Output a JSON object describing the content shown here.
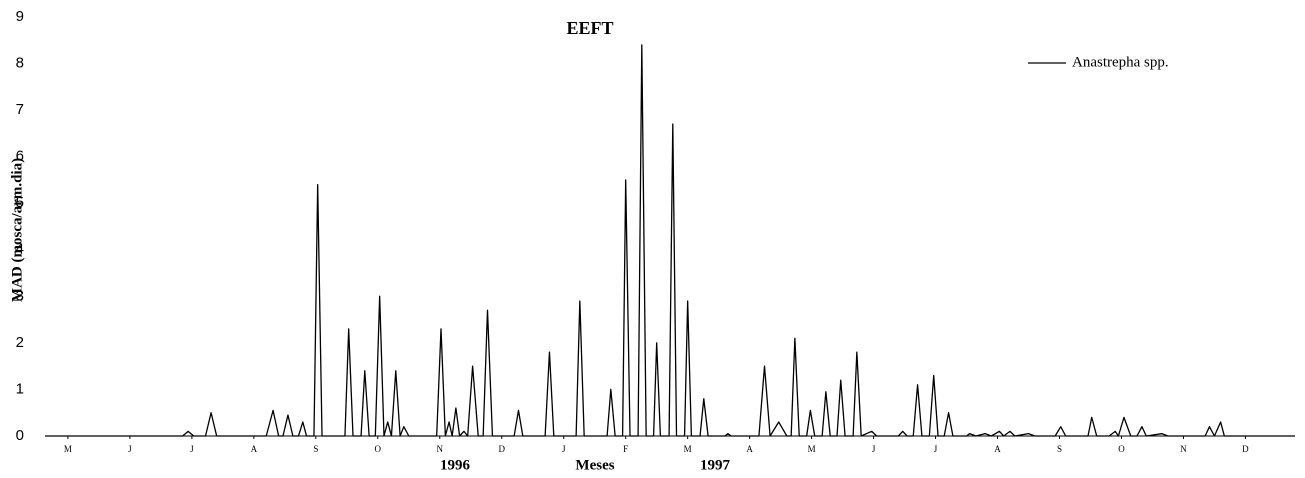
{
  "chart_data": {
    "type": "line",
    "title": "EEFT",
    "y_label": "MAD (mosca/arm.dia)",
    "x_label": "Meses",
    "year_labels": [
      "1996",
      "1997"
    ],
    "xlim": [
      -0.37,
      19.8
    ],
    "ylim": [
      0,
      9
    ],
    "yticks": [
      0,
      1,
      2,
      3,
      4,
      5,
      6,
      7,
      8,
      9
    ],
    "xticks": [
      {
        "value": 0,
        "label": "M"
      },
      {
        "value": 1,
        "label": "J"
      },
      {
        "value": 2,
        "label": "J"
      },
      {
        "value": 3,
        "label": "A"
      },
      {
        "value": 4,
        "label": "S"
      },
      {
        "value": 5,
        "label": "O"
      },
      {
        "value": 6,
        "label": "N"
      },
      {
        "value": 7,
        "label": "D"
      },
      {
        "value": 8,
        "label": "J"
      },
      {
        "value": 9,
        "label": "F"
      },
      {
        "value": 10,
        "label": "M"
      },
      {
        "value": 11,
        "label": "A"
      },
      {
        "value": 12,
        "label": "M"
      },
      {
        "value": 13,
        "label": "J"
      },
      {
        "value": 14,
        "label": "J"
      },
      {
        "value": 15,
        "label": "A"
      },
      {
        "value": 16,
        "label": "S"
      },
      {
        "value": 17,
        "label": "O"
      },
      {
        "value": 18,
        "label": "N"
      },
      {
        "value": 19,
        "label": "D"
      }
    ],
    "legend": "upper right",
    "grid": false,
    "x": [
      -0.37,
      1.85,
      1.94,
      2.03,
      2.22,
      2.31,
      2.4,
      3.2,
      3.31,
      3.4,
      3.47,
      3.55,
      3.63,
      3.72,
      3.79,
      3.85,
      3.97,
      4.03,
      4.1,
      4.47,
      4.53,
      4.6,
      4.73,
      4.79,
      4.86,
      4.96,
      5.03,
      5.1,
      5.16,
      5.22,
      5.29,
      5.36,
      5.42,
      5.5,
      5.95,
      6.02,
      6.09,
      6.15,
      6.2,
      6.26,
      6.32,
      6.39,
      6.45,
      6.53,
      6.62,
      6.7,
      6.77,
      6.85,
      7.2,
      7.27,
      7.34,
      7.7,
      7.77,
      7.84,
      8.2,
      8.26,
      8.33,
      8.7,
      8.76,
      8.83,
      8.95,
      9,
      9.07,
      9.2,
      9.26,
      9.33,
      9.45,
      9.5,
      9.56,
      9.7,
      9.76,
      9.82,
      9.95,
      10,
      10.06,
      10.2,
      10.26,
      10.33,
      10.6,
      10.65,
      10.7,
      11.15,
      11.24,
      11.33,
      11.47,
      11.6,
      11.67,
      11.73,
      11.8,
      11.92,
      11.98,
      12.05,
      12.17,
      12.23,
      12.3,
      12.41,
      12.47,
      12.54,
      12.67,
      12.73,
      12.8,
      12.97,
      13.05,
      13.4,
      13.47,
      13.54,
      13.64,
      13.71,
      13.78,
      13.9,
      13.97,
      14.04,
      14.14,
      14.21,
      14.28,
      14.5,
      14.55,
      14.65,
      14.8,
      14.9,
      15.03,
      15.1,
      15.2,
      15.28,
      15.5,
      15.6,
      15.93,
      16.02,
      16.1,
      16.46,
      16.52,
      16.6,
      16.8,
      16.9,
      16.95,
      17.04,
      17.15,
      17.25,
      17.33,
      17.4,
      17.65,
      17.75,
      18.35,
      18.42,
      18.5,
      18.6,
      18.66,
      19.8
    ],
    "series": [
      {
        "name": "Anastrepha spp.",
        "color": "#000000",
        "values": [
          0,
          0,
          0.1,
          0,
          0,
          0.5,
          0,
          0,
          0.55,
          0,
          0,
          0.45,
          0,
          0,
          0.3,
          0,
          0,
          5.4,
          0,
          0,
          2.3,
          0,
          0,
          1.4,
          0,
          0,
          3,
          0,
          0.3,
          0,
          1.4,
          0,
          0.2,
          0,
          0,
          2.3,
          0,
          0.3,
          0,
          0.6,
          0,
          0.1,
          0,
          1.5,
          0,
          0,
          2.7,
          0,
          0,
          0.55,
          0,
          0,
          1.8,
          0,
          0,
          2.9,
          0,
          0,
          1,
          0,
          0,
          5.5,
          0,
          0,
          8.4,
          0,
          0,
          2,
          0,
          0,
          6.7,
          0,
          0,
          2.9,
          0,
          0,
          0.8,
          0,
          0,
          0.05,
          0,
          0,
          1.5,
          0,
          0.3,
          0,
          0,
          2.1,
          0,
          0,
          0.55,
          0,
          0,
          0.95,
          0,
          0,
          1.2,
          0,
          0,
          1.8,
          0,
          0.1,
          0,
          0,
          0.1,
          0,
          0,
          1.1,
          0,
          0,
          1.3,
          0,
          0,
          0.5,
          0,
          0,
          0.05,
          0,
          0.05,
          0,
          0.1,
          0,
          0.1,
          0,
          0.05,
          0,
          0,
          0.2,
          0,
          0,
          0.4,
          0,
          0,
          0.1,
          0,
          0.4,
          0,
          0,
          0.2,
          0,
          0.05,
          0,
          0,
          0.2,
          0,
          0.3,
          0,
          0
        ]
      }
    ]
  }
}
